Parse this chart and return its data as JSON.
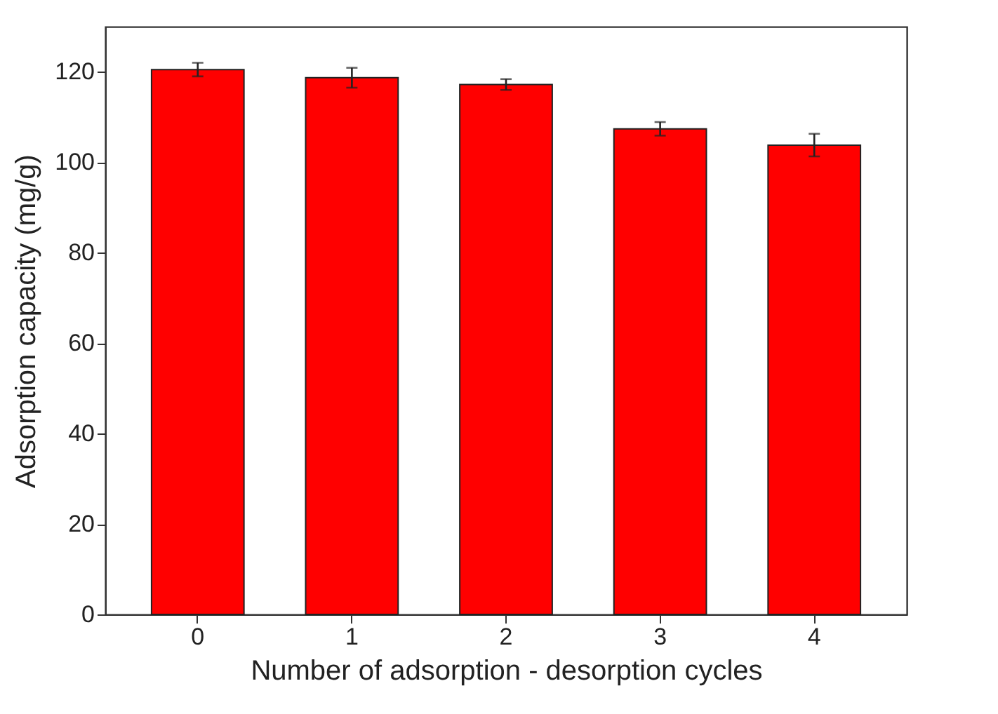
{
  "chart_data": {
    "type": "bar",
    "xlabel": "Number of adsorption - desorption cycles",
    "ylabel": "Adsorption capacity (mg/g)",
    "categories": [
      "0",
      "1",
      "2",
      "3",
      "4"
    ],
    "values": [
      120.5,
      118.7,
      117.2,
      107.4,
      103.8
    ],
    "errors": [
      1.5,
      2.2,
      1.2,
      1.5,
      2.5
    ],
    "color": "#ff0000",
    "ylim": [
      0,
      130
    ],
    "yticks": [
      0,
      20,
      40,
      60,
      80,
      100,
      120
    ],
    "grid": false
  }
}
